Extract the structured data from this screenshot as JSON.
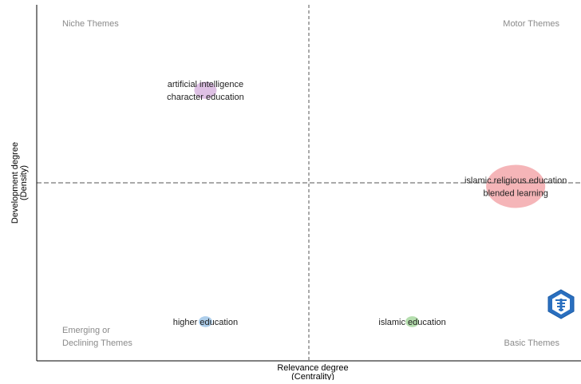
{
  "chart_data": {
    "type": "scatter",
    "title": "",
    "xlabel": "Relevance degree",
    "xlabel_sub": "(Centrality)",
    "ylabel": "Development degree",
    "ylabel_sub": "(Density)",
    "xlim": [
      0,
      1
    ],
    "ylim": [
      0,
      1
    ],
    "divider_x": 0.5,
    "divider_y": 0.5,
    "grid": false,
    "quadrants": {
      "top_left": [
        "Niche Themes"
      ],
      "top_right": [
        "Motor Themes"
      ],
      "bottom_left": [
        "Emerging or",
        "Declining Themes"
      ],
      "bottom_right": [
        "Basic Themes"
      ]
    },
    "clusters": [
      {
        "labels": [
          "artificial intelligence",
          "character education"
        ],
        "x": 0.31,
        "y": 0.76,
        "size": 0.26,
        "color": "#d9b6e0"
      },
      {
        "labels": [
          "islamic religious education",
          "blended learning"
        ],
        "x": 0.88,
        "y": 0.49,
        "size": 1.0,
        "color": "#f3a8ab"
      },
      {
        "labels": [
          "higher education"
        ],
        "x": 0.31,
        "y": 0.11,
        "size": 0.08,
        "color": "#9fc5e8"
      },
      {
        "labels": [
          "islamic education"
        ],
        "x": 0.69,
        "y": 0.11,
        "size": 0.08,
        "color": "#a8d8a0"
      }
    ],
    "divider_color": "#555555",
    "axis_color": "#000000"
  },
  "logo_icon": "bibliometrix-logo-icon"
}
